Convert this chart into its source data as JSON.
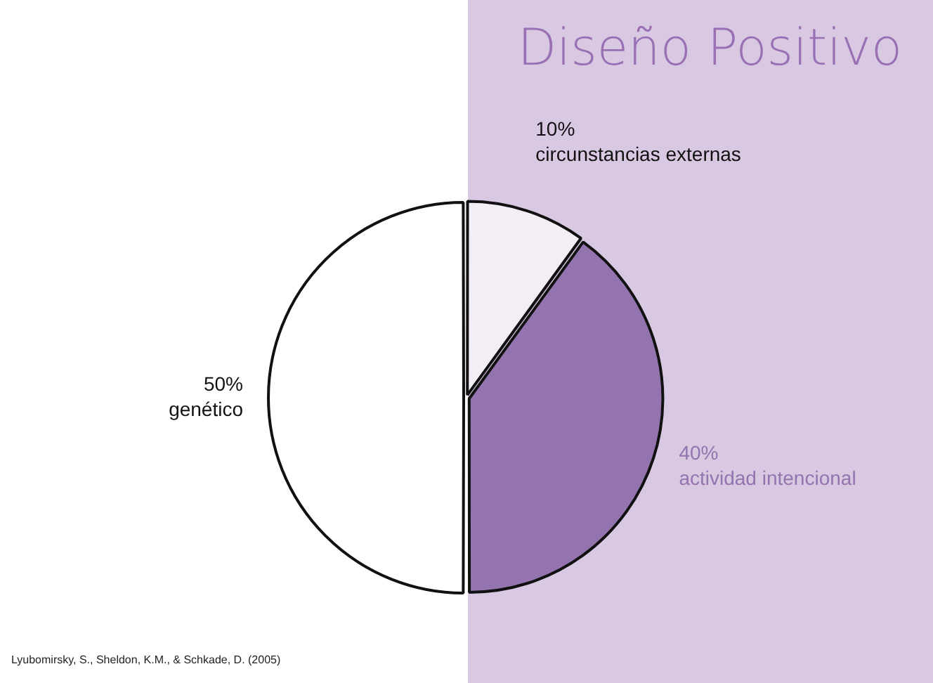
{
  "chart_data": {
    "type": "pie",
    "title": "Diseño Positivo",
    "categories": [
      "circunstancias externas",
      "actividad intencional",
      "genético"
    ],
    "values": [
      10,
      40,
      50
    ],
    "colors": [
      "#f3eef6",
      "#9474ae",
      "#ffffff"
    ],
    "value_labels": [
      "10%",
      "40%",
      "50%"
    ],
    "legend": false,
    "annotations": [
      "Lyubomirsky, S., Sheldon, K.M., & Schkade, D. (2005)"
    ]
  }
}
